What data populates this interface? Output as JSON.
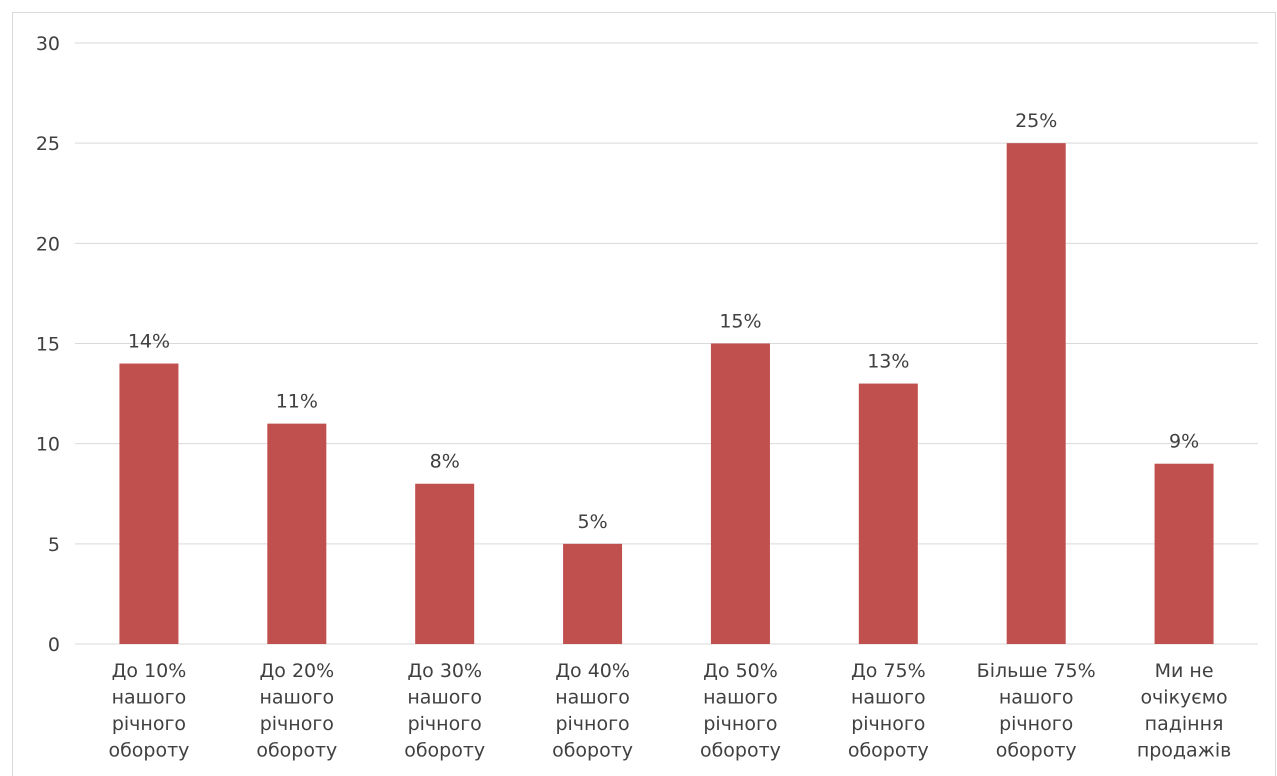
{
  "chart_data": {
    "type": "bar",
    "categories": [
      [
        "До 10%",
        "нашого",
        "річного",
        "обороту"
      ],
      [
        "До 20%",
        "нашого",
        "річного",
        "обороту"
      ],
      [
        "До 30%",
        "нашого",
        "річного",
        "обороту"
      ],
      [
        "До 40%",
        "нашого",
        "річного",
        "обороту"
      ],
      [
        "До 50%",
        "нашого",
        "річного",
        "обороту"
      ],
      [
        "До 75%",
        "нашого",
        "річного",
        "обороту"
      ],
      [
        "Більше 75%",
        "нашого",
        "річного",
        "обороту"
      ],
      [
        "Ми не",
        "очікуємо",
        "падіння",
        "продажів"
      ]
    ],
    "values": [
      14,
      11,
      8,
      5,
      15,
      13,
      25,
      9
    ],
    "data_labels": [
      "14%",
      "11%",
      "8%",
      "5%",
      "15%",
      "13%",
      "25%",
      "9%"
    ],
    "y_ticks": [
      "0",
      "5",
      "10",
      "15",
      "20",
      "25",
      "30"
    ],
    "ylim": [
      0,
      30
    ],
    "grid": true,
    "legend": "none",
    "colors": {
      "bar": "#c0504d",
      "grid": "#d9d9d9",
      "text": "#404040"
    }
  }
}
